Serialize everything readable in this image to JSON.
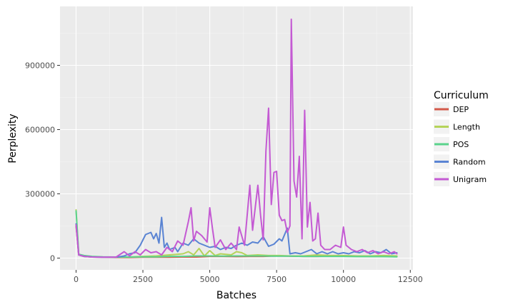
{
  "chart_data": {
    "type": "line",
    "title": "",
    "xlabel": "Batches",
    "ylabel": "Perplexity",
    "xlim": [
      -600,
      12600
    ],
    "ylim": [
      -55000,
      1175000
    ],
    "x_ticks": [
      0,
      2500,
      5000,
      7500,
      10000,
      12500
    ],
    "x_tick_labels": [
      "0",
      "2500",
      "5000",
      "7500",
      "10000",
      "12500"
    ],
    "y_ticks": [
      0,
      300000,
      600000,
      900000
    ],
    "y_tick_labels": [
      "0",
      "300000",
      "600000",
      "900000"
    ],
    "grid": true,
    "legend": {
      "title": "Curriculum",
      "position": "right",
      "entries": [
        "DEP",
        "Length",
        "POS",
        "Random",
        "Unigram"
      ]
    },
    "series": [
      {
        "name": "DEP",
        "color": "#d3594a",
        "points": [
          [
            0,
            150000
          ],
          [
            100,
            15000
          ],
          [
            300,
            8000
          ],
          [
            600,
            5000
          ],
          [
            1000,
            4000
          ],
          [
            1500,
            3000
          ],
          [
            2000,
            3000
          ],
          [
            2500,
            4000
          ],
          [
            3000,
            4000
          ],
          [
            3500,
            4000
          ],
          [
            4000,
            5000
          ],
          [
            4500,
            5000
          ],
          [
            5000,
            8000
          ],
          [
            5500,
            8000
          ],
          [
            6000,
            7000
          ],
          [
            6500,
            8000
          ],
          [
            7000,
            8000
          ],
          [
            7500,
            10000
          ],
          [
            8000,
            9000
          ],
          [
            8500,
            8000
          ],
          [
            9000,
            8000
          ],
          [
            9500,
            9000
          ],
          [
            10000,
            10000
          ],
          [
            10500,
            9000
          ],
          [
            11000,
            8000
          ],
          [
            11500,
            8000
          ],
          [
            12000,
            8000
          ]
        ]
      },
      {
        "name": "Length",
        "color": "#b5d35a",
        "points": [
          [
            0,
            225000
          ],
          [
            100,
            18000
          ],
          [
            300,
            9000
          ],
          [
            600,
            6000
          ],
          [
            1000,
            5000
          ],
          [
            1500,
            4000
          ],
          [
            2000,
            5000
          ],
          [
            2500,
            8000
          ],
          [
            3000,
            10000
          ],
          [
            3500,
            15000
          ],
          [
            4000,
            20000
          ],
          [
            4200,
            30000
          ],
          [
            4400,
            15000
          ],
          [
            4600,
            45000
          ],
          [
            4800,
            10000
          ],
          [
            5000,
            35000
          ],
          [
            5200,
            12000
          ],
          [
            5400,
            20000
          ],
          [
            5800,
            15000
          ],
          [
            6000,
            30000
          ],
          [
            6200,
            25000
          ],
          [
            6400,
            12000
          ],
          [
            6800,
            15000
          ],
          [
            7200,
            12000
          ],
          [
            7600,
            12000
          ],
          [
            8000,
            10000
          ],
          [
            8500,
            10000
          ],
          [
            9000,
            15000
          ],
          [
            9500,
            12000
          ],
          [
            10000,
            12000
          ],
          [
            10500,
            10000
          ],
          [
            11000,
            10000
          ],
          [
            11500,
            12000
          ],
          [
            12000,
            10000
          ]
        ]
      },
      {
        "name": "POS",
        "color": "#5ad38c",
        "points": [
          [
            0,
            220000
          ],
          [
            100,
            18000
          ],
          [
            300,
            12000
          ],
          [
            600,
            8000
          ],
          [
            1000,
            6000
          ],
          [
            1500,
            5000
          ],
          [
            2000,
            5000
          ],
          [
            2500,
            6000
          ],
          [
            3000,
            6000
          ],
          [
            3500,
            8000
          ],
          [
            4000,
            8000
          ],
          [
            4500,
            10000
          ],
          [
            5000,
            10000
          ],
          [
            5500,
            9000
          ],
          [
            6000,
            10000
          ],
          [
            6500,
            10000
          ],
          [
            7000,
            10000
          ],
          [
            7500,
            9000
          ],
          [
            8000,
            9000
          ],
          [
            8500,
            8000
          ],
          [
            9000,
            8000
          ],
          [
            9500,
            8000
          ],
          [
            10000,
            8000
          ],
          [
            10500,
            7000
          ],
          [
            11000,
            7000
          ],
          [
            11500,
            7000
          ],
          [
            12000,
            6000
          ]
        ]
      },
      {
        "name": "Random",
        "color": "#5a84d3",
        "points": [
          [
            0,
            160000
          ],
          [
            100,
            15000
          ],
          [
            300,
            8000
          ],
          [
            600,
            5000
          ],
          [
            1000,
            4000
          ],
          [
            1500,
            4000
          ],
          [
            1800,
            10000
          ],
          [
            2000,
            20000
          ],
          [
            2200,
            25000
          ],
          [
            2400,
            60000
          ],
          [
            2600,
            110000
          ],
          [
            2800,
            120000
          ],
          [
            2900,
            90000
          ],
          [
            3000,
            115000
          ],
          [
            3100,
            70000
          ],
          [
            3200,
            190000
          ],
          [
            3300,
            50000
          ],
          [
            3400,
            70000
          ],
          [
            3500,
            40000
          ],
          [
            3700,
            50000
          ],
          [
            3800,
            30000
          ],
          [
            4000,
            70000
          ],
          [
            4200,
            60000
          ],
          [
            4400,
            90000
          ],
          [
            4600,
            70000
          ],
          [
            4800,
            60000
          ],
          [
            5000,
            50000
          ],
          [
            5200,
            55000
          ],
          [
            5400,
            40000
          ],
          [
            5600,
            50000
          ],
          [
            5800,
            45000
          ],
          [
            6000,
            60000
          ],
          [
            6200,
            70000
          ],
          [
            6400,
            60000
          ],
          [
            6600,
            75000
          ],
          [
            6800,
            70000
          ],
          [
            7000,
            100000
          ],
          [
            7200,
            55000
          ],
          [
            7400,
            65000
          ],
          [
            7600,
            90000
          ],
          [
            7700,
            80000
          ],
          [
            7900,
            140000
          ],
          [
            8000,
            20000
          ],
          [
            8200,
            25000
          ],
          [
            8400,
            20000
          ],
          [
            8600,
            30000
          ],
          [
            8800,
            40000
          ],
          [
            9000,
            20000
          ],
          [
            9200,
            30000
          ],
          [
            9400,
            20000
          ],
          [
            9600,
            30000
          ],
          [
            9800,
            20000
          ],
          [
            10000,
            25000
          ],
          [
            10200,
            20000
          ],
          [
            10400,
            30000
          ],
          [
            10600,
            25000
          ],
          [
            10800,
            35000
          ],
          [
            11000,
            20000
          ],
          [
            11200,
            30000
          ],
          [
            11400,
            25000
          ],
          [
            11600,
            40000
          ],
          [
            11800,
            20000
          ],
          [
            12000,
            25000
          ]
        ]
      },
      {
        "name": "Unigram",
        "color": "#c45ad3",
        "points": [
          [
            0,
            155000
          ],
          [
            100,
            15000
          ],
          [
            300,
            8000
          ],
          [
            600,
            5000
          ],
          [
            1000,
            4000
          ],
          [
            1500,
            5000
          ],
          [
            1800,
            30000
          ],
          [
            2000,
            10000
          ],
          [
            2200,
            30000
          ],
          [
            2400,
            15000
          ],
          [
            2600,
            40000
          ],
          [
            2800,
            25000
          ],
          [
            3000,
            30000
          ],
          [
            3200,
            15000
          ],
          [
            3400,
            50000
          ],
          [
            3600,
            30000
          ],
          [
            3800,
            80000
          ],
          [
            4000,
            60000
          ],
          [
            4200,
            170000
          ],
          [
            4300,
            235000
          ],
          [
            4400,
            80000
          ],
          [
            4500,
            125000
          ],
          [
            4700,
            105000
          ],
          [
            4900,
            75000
          ],
          [
            5000,
            235000
          ],
          [
            5100,
            140000
          ],
          [
            5200,
            50000
          ],
          [
            5400,
            85000
          ],
          [
            5600,
            40000
          ],
          [
            5800,
            70000
          ],
          [
            6000,
            40000
          ],
          [
            6100,
            145000
          ],
          [
            6300,
            60000
          ],
          [
            6500,
            340000
          ],
          [
            6600,
            130000
          ],
          [
            6800,
            340000
          ],
          [
            6900,
            200000
          ],
          [
            7000,
            85000
          ],
          [
            7100,
            500000
          ],
          [
            7200,
            700000
          ],
          [
            7300,
            250000
          ],
          [
            7400,
            400000
          ],
          [
            7500,
            405000
          ],
          [
            7600,
            200000
          ],
          [
            7700,
            175000
          ],
          [
            7800,
            180000
          ],
          [
            7900,
            120000
          ],
          [
            8000,
            150000
          ],
          [
            8050,
            1115000
          ],
          [
            8150,
            360000
          ],
          [
            8250,
            285000
          ],
          [
            8350,
            475000
          ],
          [
            8450,
            90000
          ],
          [
            8550,
            690000
          ],
          [
            8650,
            145000
          ],
          [
            8750,
            260000
          ],
          [
            8850,
            80000
          ],
          [
            8950,
            90000
          ],
          [
            9050,
            210000
          ],
          [
            9150,
            60000
          ],
          [
            9300,
            40000
          ],
          [
            9500,
            40000
          ],
          [
            9700,
            60000
          ],
          [
            9900,
            50000
          ],
          [
            10000,
            145000
          ],
          [
            10100,
            60000
          ],
          [
            10300,
            40000
          ],
          [
            10500,
            30000
          ],
          [
            10700,
            40000
          ],
          [
            10900,
            25000
          ],
          [
            11100,
            35000
          ],
          [
            11300,
            20000
          ],
          [
            11500,
            30000
          ],
          [
            11700,
            20000
          ],
          [
            11900,
            30000
          ],
          [
            12000,
            20000
          ]
        ]
      }
    ]
  }
}
